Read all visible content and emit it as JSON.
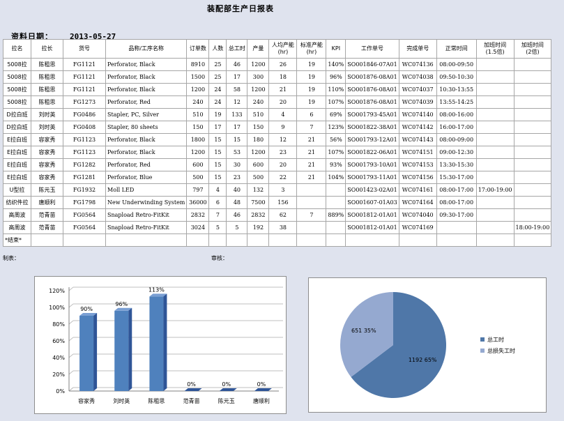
{
  "report": {
    "title": "装配部生产日报表",
    "date_label": "资料日期：",
    "date_value": "2013-05-27",
    "columns": [
      "拉名",
      "拉长",
      "货号",
      "品称/工序名称",
      "订单数",
      "人数",
      "总工时",
      "产量",
      "人均产能\n(hr)",
      "标准产能\n(hr)",
      "KPI",
      "工作单号",
      "完成单号",
      "正常时间",
      "加班时间\n(1.5倍)",
      "加班时间\n(2倍)"
    ],
    "rows": [
      [
        "5008拉",
        "陈租思",
        "FG1121",
        "Perforator, Black",
        "8910",
        "25",
        "46",
        "1200",
        "26",
        "19",
        "140%",
        "SO001846-07A01",
        "WC074136",
        "08:00-09:50",
        "",
        ""
      ],
      [
        "5008拉",
        "陈租思",
        "FG1121",
        "Perforator, Black",
        "1500",
        "25",
        "17",
        "300",
        "18",
        "19",
        "96%",
        "SO001876-08A01",
        "WC074038",
        "09:50-10:30",
        "",
        ""
      ],
      [
        "5008拉",
        "陈租思",
        "FG1121",
        "Perforator, Black",
        "1200",
        "24",
        "58",
        "1200",
        "21",
        "19",
        "110%",
        "SO001876-08A01",
        "WC074037",
        "10:30-13:55",
        "",
        ""
      ],
      [
        "5008拉",
        "陈租思",
        "FG1273",
        "Perforator, Red",
        "240",
        "24",
        "12",
        "240",
        "20",
        "19",
        "107%",
        "SO001876-08A01",
        "WC074039",
        "13:55-14:25",
        "",
        ""
      ],
      [
        "D拉白班",
        "刘时英",
        "FG0486",
        "Stapler, PC, Silver",
        "510",
        "19",
        "133",
        "510",
        "4",
        "6",
        "69%",
        "SO001793-45A01",
        "WC074140",
        "08:00-16:00",
        "",
        ""
      ],
      [
        "D拉白班",
        "刘时英",
        "FG0408",
        "Stapler, 80 sheets",
        "150",
        "17",
        "17",
        "150",
        "9",
        "7",
        "123%",
        "SO001822-38A01",
        "WC074142",
        "16:00-17:00",
        "",
        ""
      ],
      [
        "E拉白班",
        "容家秀",
        "FG1123",
        "Perforator, Black",
        "1800",
        "15",
        "15",
        "180",
        "12",
        "21",
        "56%",
        "SO001793-12A01",
        "WC074143",
        "08:00-09:00",
        "",
        ""
      ],
      [
        "E拉白班",
        "容家秀",
        "FG1123",
        "Perforator, Black",
        "1200",
        "15",
        "53",
        "1200",
        "23",
        "21",
        "107%",
        "SO001822-06A01",
        "WC074151",
        "09:00-12:30",
        "",
        ""
      ],
      [
        "E拉白班",
        "容家秀",
        "FG1282",
        "Perforator, Red",
        "600",
        "15",
        "30",
        "600",
        "20",
        "21",
        "93%",
        "SO001793-10A01",
        "WC074153",
        "13:30-15:30",
        "",
        ""
      ],
      [
        "E拉白班",
        "容家秀",
        "FG1281",
        "Perforator, Blue",
        "500",
        "15",
        "23",
        "500",
        "22",
        "21",
        "104%",
        "SO001793-11A01",
        "WC074156",
        "15:30-17:00",
        "",
        ""
      ],
      [
        "U型拉",
        "陈元玉",
        "FG1932",
        "Moll LED",
        "797",
        "4",
        "40",
        "132",
        "3",
        "",
        "",
        "SO001423-02A01",
        "WC074161",
        "08:00-17:00",
        "17:00-19:00",
        ""
      ],
      [
        "纺织件拉",
        "唐顺利",
        "FG1798",
        "New Underwinding System",
        "36000",
        "6",
        "48",
        "7500",
        "156",
        "",
        "",
        "SO001607-01A03",
        "WC074164",
        "08:00-17:00",
        "",
        ""
      ],
      [
        "高周波",
        "范青苗",
        "FG0564",
        "Snapload Retro-FitKit",
        "2832",
        "7",
        "46",
        "2832",
        "62",
        "7",
        "889%",
        "SO001812-01A01",
        "WC074040",
        "09:30-17:00",
        "",
        ""
      ],
      [
        "高周波",
        "范青苗",
        "FG0564",
        "Snapload Retro-FitKit",
        "3024",
        "5",
        "5",
        "192",
        "38",
        "",
        "",
        "SO001812-01A01",
        "WC074169",
        "",
        "",
        "18:00-19:00"
      ],
      [
        "*结束*",
        "",
        "",
        "",
        "",
        "",
        "",
        "",
        "",
        "",
        "",
        "",
        "",
        "",
        "",
        ""
      ]
    ],
    "made_by_label": "制表：",
    "review_label": "审核："
  },
  "chart_data": [
    {
      "type": "bar",
      "categories": [
        "容家秀",
        "刘时英",
        "陈租思",
        "范青苗",
        "陈元玉",
        "唐顺利"
      ],
      "values": [
        90,
        96,
        113,
        0,
        0,
        0
      ],
      "data_labels": [
        "90%",
        "96%",
        "113%",
        "0%",
        "0%",
        "0%"
      ],
      "yticks": [
        "0%",
        "20%",
        "40%",
        "60%",
        "80%",
        "100%",
        "120%"
      ],
      "ylim": [
        0,
        120
      ],
      "grid": true,
      "color": "#4f81bd"
    },
    {
      "type": "pie",
      "slices": [
        {
          "name": "总工时",
          "value": 1192,
          "percent": 65,
          "label": "1192 65%",
          "color": "#4f77a8"
        },
        {
          "name": "总损失工时",
          "value": 651,
          "percent": 35,
          "label": "651 35%",
          "color": "#95a9d0"
        }
      ],
      "legend_position": "right"
    }
  ]
}
